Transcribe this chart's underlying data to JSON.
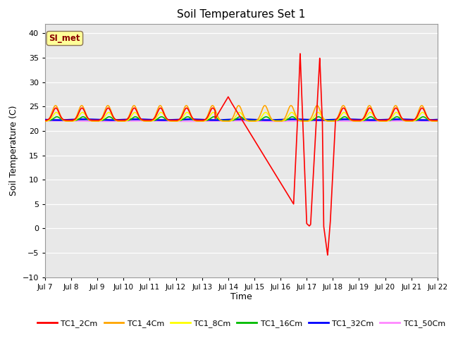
{
  "title": "Soil Temperatures Set 1",
  "xlabel": "Time",
  "ylabel": "Soil Temperature (C)",
  "ylim": [
    -10,
    42
  ],
  "yticks": [
    -10,
    -5,
    0,
    5,
    10,
    15,
    20,
    25,
    30,
    35,
    40
  ],
  "xlim_days": [
    7,
    22
  ],
  "xtick_labels": [
    "Jul 7",
    "Jul 8",
    "Jul 9",
    "Jul 10",
    "Jul 11",
    "Jul 12",
    "Jul 13",
    "Jul 14",
    "Jul 15",
    "Jul 16",
    "Jul 17",
    "Jul 18",
    "Jul 19",
    "Jul 20",
    "Jul 21",
    "Jul 22"
  ],
  "xtick_positions": [
    7,
    8,
    9,
    10,
    11,
    12,
    13,
    14,
    15,
    16,
    17,
    18,
    19,
    20,
    21,
    22
  ],
  "annotation_text": "SI_met",
  "annotation_color": "#8B0000",
  "annotation_bg": "#FFFF99",
  "annotation_edge": "#8B7355",
  "bg_color": "#E8E8E8",
  "grid_color": "#FFFFFF",
  "series_colors": {
    "TC1_2Cm": "#FF0000",
    "TC1_4Cm": "#FFA500",
    "TC1_8Cm": "#FFFF00",
    "TC1_16Cm": "#00BB00",
    "TC1_32Cm": "#0000FF",
    "TC1_50Cm": "#FF88FF"
  },
  "series_linewidths": {
    "TC1_2Cm": 1.2,
    "TC1_4Cm": 1.2,
    "TC1_8Cm": 1.2,
    "TC1_16Cm": 1.2,
    "TC1_32Cm": 1.8,
    "TC1_50Cm": 1.2
  },
  "base_temp": 22.2,
  "tc50_temp": 22.0,
  "tc32_temp": 22.3
}
